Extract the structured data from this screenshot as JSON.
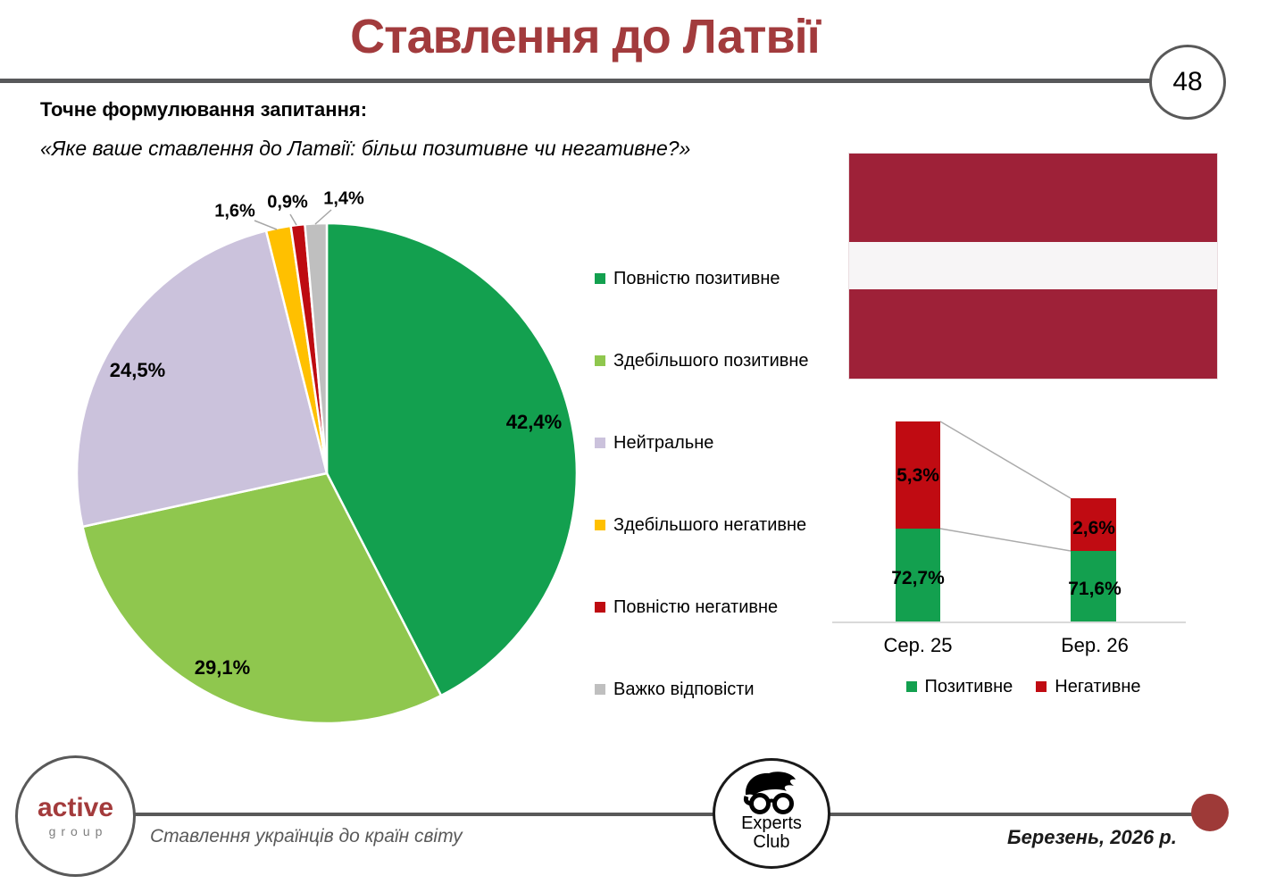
{
  "slide": {
    "title": "Ставлення до Латвії",
    "page_number": "48",
    "question_label": "Точне формулювання запитання:",
    "question_text": "«Яке ваше ставлення до Латвії: більш позитивне чи негативне?»"
  },
  "pie_legend": {
    "items": [
      {
        "label": "Повністю позитивне",
        "color": "#13A04F"
      },
      {
        "label": "Здебільшого позитивне",
        "color": "#8FC74E"
      },
      {
        "label": "Нейтральне",
        "color": "#CBC2DC"
      },
      {
        "label": "Здебільшого негативне",
        "color": "#FFC000"
      },
      {
        "label": "Повністю негативне",
        "color": "#BE0B11"
      },
      {
        "label": "Важко відповісти",
        "color": "#BFBFBF"
      }
    ]
  },
  "flag": {
    "country": "Latvia",
    "stripe_red": "#9E2138",
    "stripe_white": "#F7F5F6"
  },
  "footer": {
    "active_logo_line1": "active",
    "active_logo_line2": "group",
    "tagline": "Ставлення українців до країн світу",
    "experts_line1": "Experts",
    "experts_line2": "Club",
    "date": "Березень, 2026 р."
  },
  "chart_data": [
    {
      "type": "pie",
      "title": "Ставлення до Латвії",
      "labels": [
        "Повністю позитивне",
        "Здебільшого позитивне",
        "Нейтральне",
        "Здебільшого негативне",
        "Повністю негативне",
        "Важко відповісти"
      ],
      "values": [
        42.4,
        29.1,
        24.5,
        1.6,
        0.9,
        1.4
      ],
      "display_values": [
        "42,4%",
        "29,1%",
        "24,5%",
        "1,6%",
        "0,9%",
        "1,4%"
      ],
      "colors": [
        "#13A04F",
        "#8FC74E",
        "#CBC2DC",
        "#FFC000",
        "#BE0B11",
        "#BFBFBF"
      ],
      "start_angle_deg": 0,
      "direction": "clockwise",
      "legend_position": "right"
    },
    {
      "type": "bar",
      "subtype": "stacked",
      "categories": [
        "Сер. 25",
        "Бер. 26"
      ],
      "series": [
        {
          "name": "Позитивне",
          "color": "#13A04F",
          "values": [
            72.7,
            71.6
          ],
          "display_values": [
            "72,7%",
            "71,6%"
          ]
        },
        {
          "name": "Негативне",
          "color": "#C00B12",
          "values": [
            5.3,
            2.6
          ],
          "display_values": [
            "5,3%",
            "2,6%"
          ]
        }
      ],
      "legend_position": "bottom",
      "gridlines": false,
      "ylim": [
        0,
        100
      ],
      "note": "segment heights in source slide are not drawn to scale"
    }
  ]
}
